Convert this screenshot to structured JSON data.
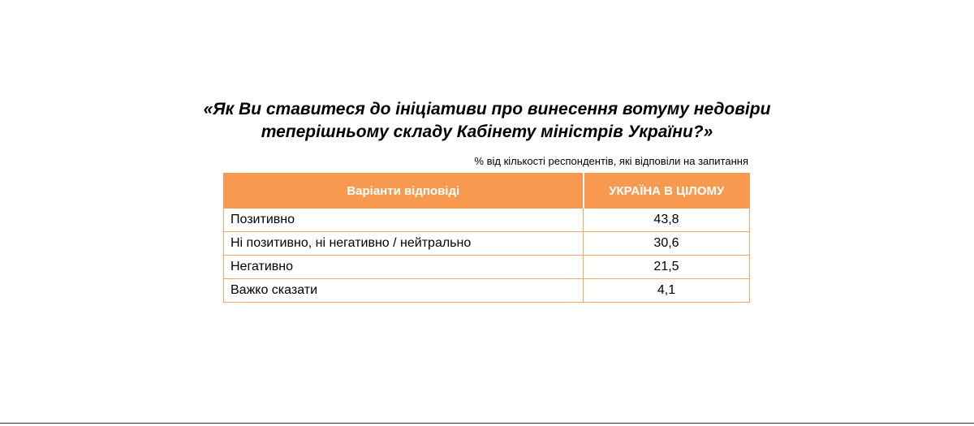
{
  "title": [
    "«Як Ви ставитеся до ініціативи про винесення вотуму недовіри",
    "теперішньому складу Кабінету міністрів України?»"
  ],
  "note": "% від кількості респондентів, які відповіли на запитання",
  "table": {
    "header": [
      "Варіанти відповіді",
      "УКРАЇНА В ЦІЛОМУ"
    ],
    "rows": [
      [
        "Позитивно",
        "43,8"
      ],
      [
        "Ні позитивно, ні негативно / нейтрально",
        "30,6"
      ],
      [
        "Негативно",
        "21,5"
      ],
      [
        "Важко сказати",
        "4,1"
      ]
    ]
  }
}
